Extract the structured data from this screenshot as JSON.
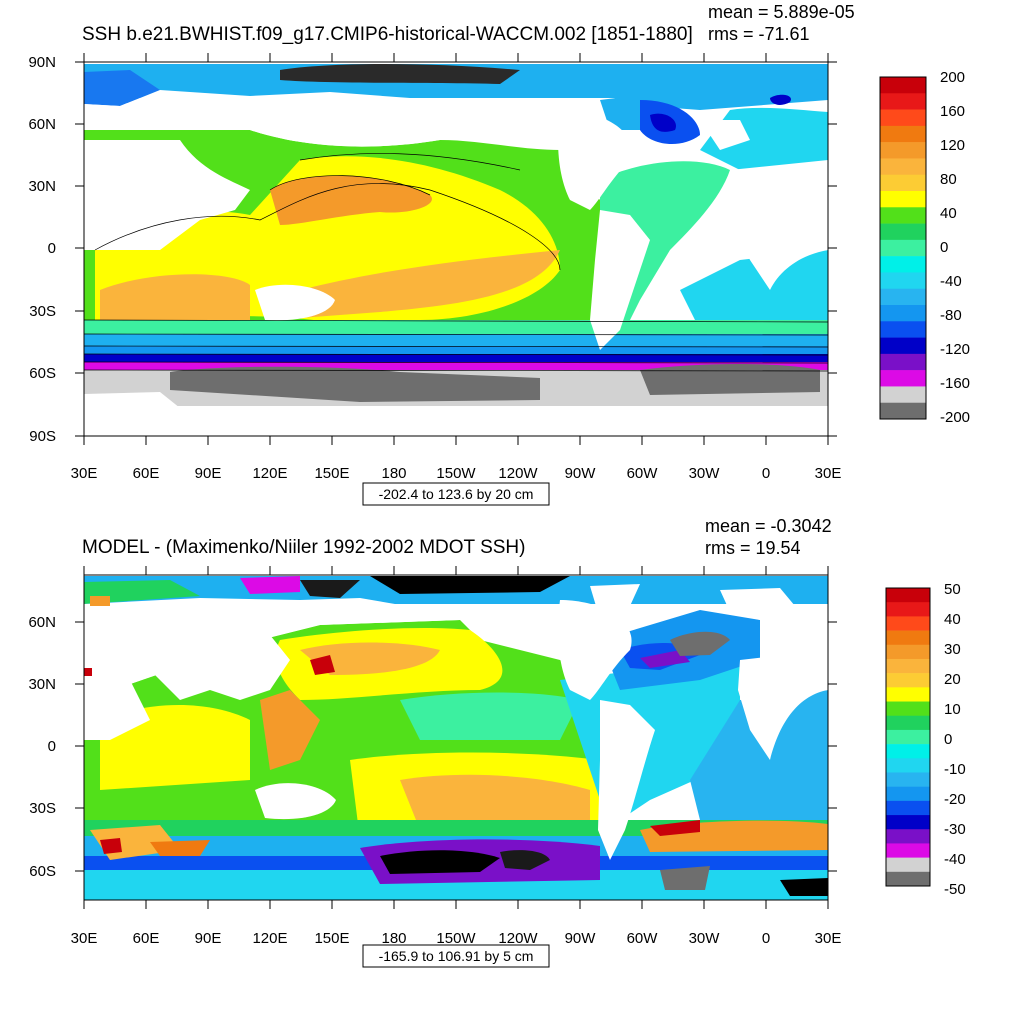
{
  "colors": {
    "background": "#ffffff",
    "land": "#ffffff",
    "frame": "#000000"
  },
  "x_tick_labels": [
    "30E",
    "60E",
    "90E",
    "120E",
    "150E",
    "180",
    "150W",
    "120W",
    "90W",
    "60W",
    "30W",
    "0",
    "30E"
  ],
  "panels": [
    {
      "title": "SSH b.e21.BWHIST.f09_g17.CMIP6-historical-WACCM.002 [1851-1880]",
      "mean_label": "mean = 5.889e-05",
      "rms_label": "rms = -71.61",
      "y_tick_labels": [
        "90N",
        "60N",
        "30N",
        "0",
        "30S",
        "60S",
        "90S"
      ],
      "range_note": "-202.4 to 123.6 by 20 cm",
      "colorbar": {
        "labels": [
          "200",
          "160",
          "120",
          "80",
          "40",
          "0",
          "-40",
          "-80",
          "-120",
          "-160",
          "-200"
        ],
        "colors": [
          "#c8000a",
          "#e81818",
          "#ff4a1a",
          "#f07a10",
          "#f49a2a",
          "#fab43c",
          "#fccc34",
          "#ffff00",
          "#52e01a",
          "#20d25e",
          "#3cf0a0",
          "#00f0e8",
          "#20d6f0",
          "#28b4f0",
          "#1496f0",
          "#0a50f0",
          "#0000c8",
          "#7a10c8",
          "#dc0ae6",
          "#d2d2d2",
          "#6e6e6e"
        ]
      }
    },
    {
      "title": "MODEL - (Maximenko/Niiler 1992-2002 MDOT SSH)",
      "mean_label": "mean = -0.3042",
      "rms_label": "rms = 19.54",
      "y_tick_labels": [
        "60N",
        "30N",
        "0",
        "30S",
        "60S"
      ],
      "range_note": "-165.9 to 106.91 by 5 cm",
      "colorbar": {
        "labels": [
          "50",
          "40",
          "30",
          "20",
          "10",
          "0",
          "-10",
          "-20",
          "-30",
          "-40",
          "-50"
        ],
        "colors": [
          "#c8000a",
          "#e81818",
          "#ff4a1a",
          "#f07a10",
          "#f49a2a",
          "#fab43c",
          "#fccc34",
          "#ffff00",
          "#52e01a",
          "#20d25e",
          "#3cf0a0",
          "#00f0e8",
          "#20d6f0",
          "#28b4f0",
          "#1496f0",
          "#0a50f0",
          "#0000c8",
          "#7a10c8",
          "#dc0ae6",
          "#d2d2d2",
          "#6e6e6e"
        ]
      }
    }
  ]
}
